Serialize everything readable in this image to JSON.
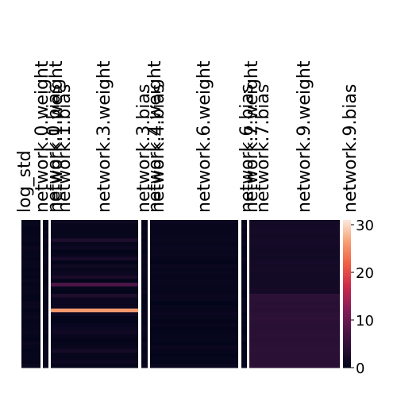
{
  "chart_data": {
    "type": "heatmap",
    "title": "",
    "xlabel": "",
    "ylabel": "",
    "columns": [
      {
        "label": "log_std",
        "tone": "low"
      },
      {
        "label": "network.0.weight",
        "tone": "low"
      },
      {
        "label": "network.0.bias",
        "tone": "low"
      },
      {
        "label": "network.1.weight",
        "tone": "low"
      },
      {
        "label": "network.1.bias",
        "tone": "low"
      },
      {
        "label": "network.3.weight",
        "tone": "hot"
      },
      {
        "label": "network.3.bias",
        "tone": "low"
      },
      {
        "label": "network.4.weight",
        "tone": "low"
      },
      {
        "label": "network.4.bias",
        "tone": "low"
      },
      {
        "label": "network.6.weight",
        "tone": "low"
      },
      {
        "label": "network.6.bias",
        "tone": "low"
      },
      {
        "label": "network.7.weight",
        "tone": "low"
      },
      {
        "label": "network.7.bias",
        "tone": "low"
      },
      {
        "label": "network.9.weight",
        "tone": "split"
      },
      {
        "label": "network.9.bias",
        "tone": "low"
      }
    ],
    "value_range": [
      0,
      31
    ],
    "colorbar": {
      "ticks": [
        0,
        10,
        20,
        30
      ]
    },
    "notes": {
      "hot_band_fraction": 0.6,
      "hot_band_peak": 28,
      "split_upper_value": 1.5,
      "split_lower_value": 3.5,
      "split_fraction": 0.5
    }
  }
}
